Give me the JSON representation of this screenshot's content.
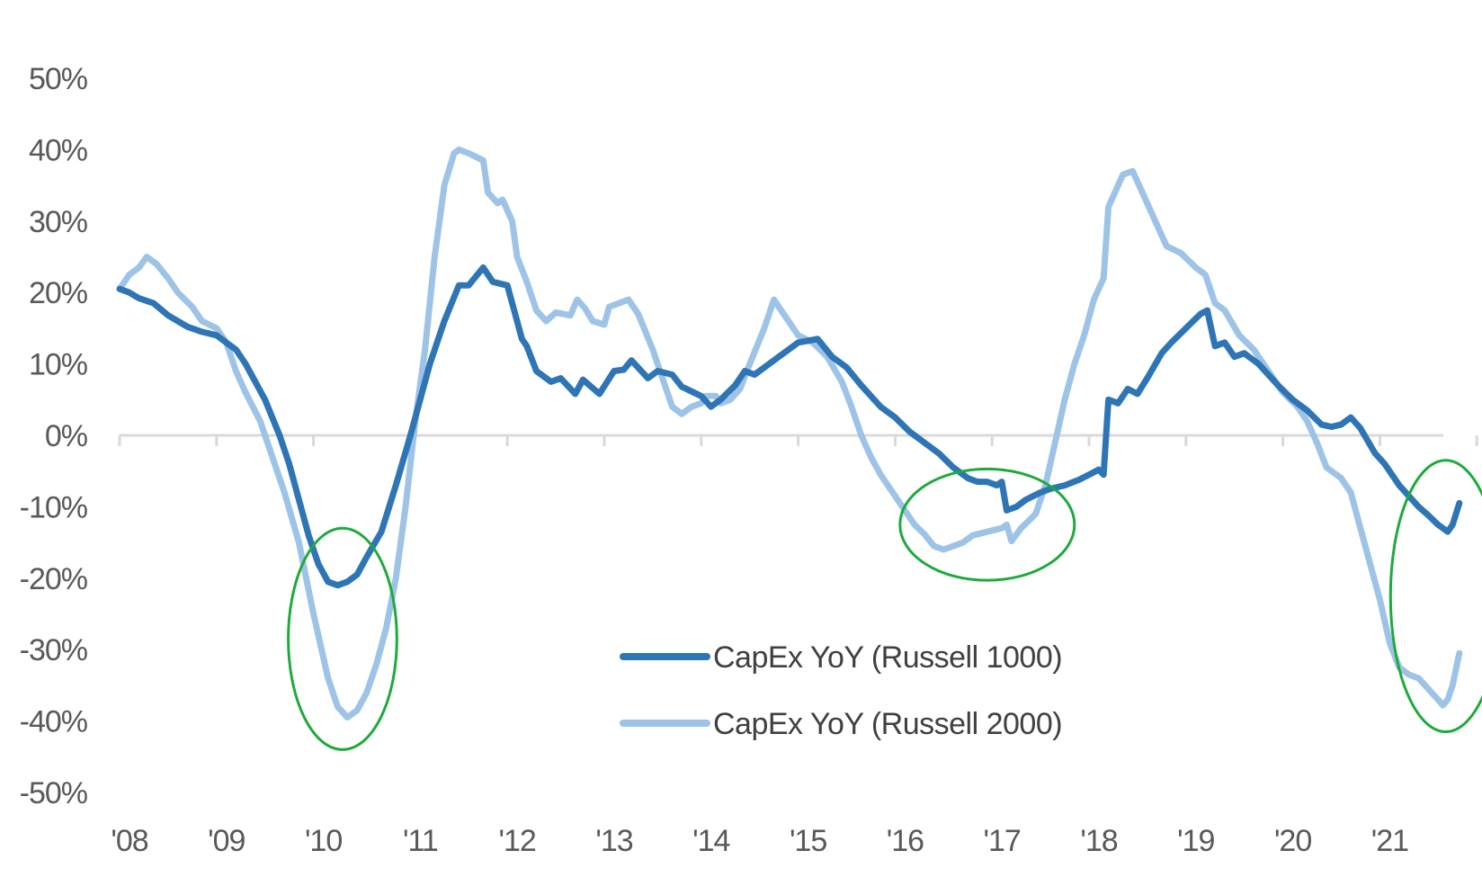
{
  "colors": {
    "series1": "#2E75B6",
    "series2": "#9DC3E6",
    "axis": "#D9D9D9",
    "highlight": "#1EAA3C"
  },
  "chart_data": {
    "type": "line",
    "title": "",
    "xlabel": "",
    "ylabel": "",
    "ylim": [
      -0.5,
      0.5
    ],
    "yticks": [
      0.5,
      0.4,
      0.3,
      0.2,
      0.1,
      0.0,
      -0.1,
      -0.2,
      -0.3,
      -0.4,
      -0.5
    ],
    "ytick_labels": [
      "50%",
      "40%",
      "30%",
      "20%",
      "10%",
      "0%",
      "-10%",
      "-20%",
      "-30%",
      "-40%",
      "-50%"
    ],
    "xlim": [
      2008.0,
      2021.65
    ],
    "xticks": [
      2008,
      2009,
      2010,
      2011,
      2012,
      2013,
      2014,
      2015,
      2016,
      2017,
      2018,
      2019,
      2020,
      2021
    ],
    "xtick_labels": [
      "'08",
      "'09",
      "'10",
      "'11",
      "'12",
      "'13",
      "'14",
      "'15",
      "'16",
      "'17",
      "'18",
      "'19",
      "'20",
      "'21"
    ],
    "legend": {
      "placement": "center-bottom"
    },
    "series": [
      {
        "name": "CapEx YoY (Russell 1000)",
        "points": [
          [
            2008.0,
            0.205
          ],
          [
            2008.1,
            0.2
          ],
          [
            2008.2,
            0.192
          ],
          [
            2008.35,
            0.185
          ],
          [
            2008.5,
            0.168
          ],
          [
            2008.7,
            0.152
          ],
          [
            2008.85,
            0.145
          ],
          [
            2009.0,
            0.14
          ],
          [
            2009.1,
            0.13
          ],
          [
            2009.2,
            0.12
          ],
          [
            2009.3,
            0.1
          ],
          [
            2009.5,
            0.05
          ],
          [
            2009.65,
            0.0
          ],
          [
            2009.75,
            -0.04
          ],
          [
            2009.85,
            -0.09
          ],
          [
            2009.95,
            -0.14
          ],
          [
            2010.05,
            -0.18
          ],
          [
            2010.15,
            -0.205
          ],
          [
            2010.25,
            -0.21
          ],
          [
            2010.35,
            -0.205
          ],
          [
            2010.45,
            -0.195
          ],
          [
            2010.55,
            -0.17
          ],
          [
            2010.7,
            -0.135
          ],
          [
            2010.85,
            -0.07
          ],
          [
            2011.0,
            0.0
          ],
          [
            2011.1,
            0.05
          ],
          [
            2011.2,
            0.1
          ],
          [
            2011.35,
            0.16
          ],
          [
            2011.5,
            0.21
          ],
          [
            2011.6,
            0.21
          ],
          [
            2011.75,
            0.235
          ],
          [
            2011.85,
            0.215
          ],
          [
            2012.0,
            0.21
          ],
          [
            2012.1,
            0.16
          ],
          [
            2012.15,
            0.135
          ],
          [
            2012.2,
            0.125
          ],
          [
            2012.3,
            0.09
          ],
          [
            2012.45,
            0.075
          ],
          [
            2012.55,
            0.08
          ],
          [
            2012.7,
            0.058
          ],
          [
            2012.78,
            0.078
          ],
          [
            2012.95,
            0.058
          ],
          [
            2013.1,
            0.09
          ],
          [
            2013.2,
            0.092
          ],
          [
            2013.28,
            0.105
          ],
          [
            2013.45,
            0.08
          ],
          [
            2013.55,
            0.09
          ],
          [
            2013.7,
            0.085
          ],
          [
            2013.8,
            0.068
          ],
          [
            2014.0,
            0.055
          ],
          [
            2014.1,
            0.04
          ],
          [
            2014.2,
            0.05
          ],
          [
            2014.35,
            0.07
          ],
          [
            2014.45,
            0.09
          ],
          [
            2014.55,
            0.085
          ],
          [
            2014.7,
            0.1
          ],
          [
            2014.85,
            0.115
          ],
          [
            2015.0,
            0.13
          ],
          [
            2015.2,
            0.135
          ],
          [
            2015.35,
            0.11
          ],
          [
            2015.5,
            0.095
          ],
          [
            2015.65,
            0.07
          ],
          [
            2015.85,
            0.04
          ],
          [
            2016.0,
            0.025
          ],
          [
            2016.15,
            0.005
          ],
          [
            2016.3,
            -0.01
          ],
          [
            2016.45,
            -0.025
          ],
          [
            2016.6,
            -0.045
          ],
          [
            2016.75,
            -0.06
          ],
          [
            2016.85,
            -0.065
          ],
          [
            2016.95,
            -0.065
          ],
          [
            2017.05,
            -0.07
          ],
          [
            2017.1,
            -0.065
          ],
          [
            2017.15,
            -0.105
          ],
          [
            2017.25,
            -0.1
          ],
          [
            2017.35,
            -0.09
          ],
          [
            2017.5,
            -0.08
          ],
          [
            2017.6,
            -0.075
          ],
          [
            2017.75,
            -0.07
          ],
          [
            2017.9,
            -0.062
          ],
          [
            2018.0,
            -0.055
          ],
          [
            2018.1,
            -0.048
          ],
          [
            2018.15,
            -0.055
          ],
          [
            2018.2,
            0.05
          ],
          [
            2018.3,
            0.045
          ],
          [
            2018.4,
            0.065
          ],
          [
            2018.5,
            0.058
          ],
          [
            2018.6,
            0.08
          ],
          [
            2018.75,
            0.115
          ],
          [
            2018.85,
            0.13
          ],
          [
            2019.0,
            0.15
          ],
          [
            2019.15,
            0.17
          ],
          [
            2019.22,
            0.175
          ],
          [
            2019.3,
            0.125
          ],
          [
            2019.4,
            0.13
          ],
          [
            2019.5,
            0.11
          ],
          [
            2019.6,
            0.115
          ],
          [
            2019.75,
            0.1
          ],
          [
            2019.95,
            0.07
          ],
          [
            2020.1,
            0.05
          ],
          [
            2020.25,
            0.035
          ],
          [
            2020.4,
            0.015
          ],
          [
            2020.5,
            0.012
          ],
          [
            2020.6,
            0.015
          ],
          [
            2020.7,
            0.025
          ],
          [
            2020.8,
            0.01
          ],
          [
            2020.95,
            -0.025
          ],
          [
            2021.05,
            -0.04
          ],
          [
            2021.2,
            -0.07
          ],
          [
            2021.3,
            -0.085
          ],
          [
            2021.4,
            -0.1
          ],
          [
            2021.5,
            -0.112
          ],
          [
            2021.6,
            -0.125
          ],
          [
            2021.65,
            -0.13
          ],
          [
            2021.7,
            -0.135
          ],
          [
            2021.75,
            -0.125
          ],
          [
            2021.82,
            -0.095
          ]
        ]
      },
      {
        "name": "CapEx YoY (Russell 2000)",
        "points": [
          [
            2008.0,
            0.205
          ],
          [
            2008.1,
            0.225
          ],
          [
            2008.2,
            0.235
          ],
          [
            2008.28,
            0.25
          ],
          [
            2008.38,
            0.24
          ],
          [
            2008.5,
            0.22
          ],
          [
            2008.6,
            0.2
          ],
          [
            2008.75,
            0.18
          ],
          [
            2008.85,
            0.16
          ],
          [
            2009.0,
            0.15
          ],
          [
            2009.1,
            0.13
          ],
          [
            2009.2,
            0.09
          ],
          [
            2009.3,
            0.06
          ],
          [
            2009.45,
            0.02
          ],
          [
            2009.55,
            -0.02
          ],
          [
            2009.7,
            -0.08
          ],
          [
            2009.85,
            -0.15
          ],
          [
            2010.0,
            -0.25
          ],
          [
            2010.15,
            -0.34
          ],
          [
            2010.25,
            -0.38
          ],
          [
            2010.35,
            -0.395
          ],
          [
            2010.45,
            -0.385
          ],
          [
            2010.55,
            -0.36
          ],
          [
            2010.65,
            -0.32
          ],
          [
            2010.75,
            -0.27
          ],
          [
            2010.85,
            -0.2
          ],
          [
            2010.95,
            -0.1
          ],
          [
            2011.05,
            0.02
          ],
          [
            2011.15,
            0.12
          ],
          [
            2011.25,
            0.25
          ],
          [
            2011.35,
            0.35
          ],
          [
            2011.45,
            0.395
          ],
          [
            2011.5,
            0.4
          ],
          [
            2011.6,
            0.395
          ],
          [
            2011.75,
            0.385
          ],
          [
            2011.8,
            0.34
          ],
          [
            2011.9,
            0.325
          ],
          [
            2011.95,
            0.33
          ],
          [
            2012.05,
            0.3
          ],
          [
            2012.1,
            0.25
          ],
          [
            2012.2,
            0.215
          ],
          [
            2012.3,
            0.175
          ],
          [
            2012.4,
            0.16
          ],
          [
            2012.5,
            0.172
          ],
          [
            2012.65,
            0.168
          ],
          [
            2012.72,
            0.19
          ],
          [
            2012.8,
            0.178
          ],
          [
            2012.88,
            0.16
          ],
          [
            2013.0,
            0.155
          ],
          [
            2013.05,
            0.18
          ],
          [
            2013.15,
            0.185
          ],
          [
            2013.25,
            0.19
          ],
          [
            2013.35,
            0.17
          ],
          [
            2013.5,
            0.12
          ],
          [
            2013.6,
            0.08
          ],
          [
            2013.7,
            0.04
          ],
          [
            2013.8,
            0.03
          ],
          [
            2013.9,
            0.04
          ],
          [
            2014.0,
            0.045
          ],
          [
            2014.05,
            0.055
          ],
          [
            2014.15,
            0.055
          ],
          [
            2014.2,
            0.045
          ],
          [
            2014.3,
            0.05
          ],
          [
            2014.4,
            0.065
          ],
          [
            2014.5,
            0.1
          ],
          [
            2014.65,
            0.15
          ],
          [
            2014.75,
            0.19
          ],
          [
            2014.85,
            0.17
          ],
          [
            2015.0,
            0.14
          ],
          [
            2015.15,
            0.13
          ],
          [
            2015.3,
            0.11
          ],
          [
            2015.45,
            0.075
          ],
          [
            2015.55,
            0.04
          ],
          [
            2015.65,
            0.0
          ],
          [
            2015.75,
            -0.03
          ],
          [
            2015.85,
            -0.055
          ],
          [
            2016.0,
            -0.085
          ],
          [
            2016.2,
            -0.125
          ],
          [
            2016.3,
            -0.138
          ],
          [
            2016.4,
            -0.155
          ],
          [
            2016.5,
            -0.16
          ],
          [
            2016.6,
            -0.155
          ],
          [
            2016.7,
            -0.15
          ],
          [
            2016.8,
            -0.14
          ],
          [
            2016.95,
            -0.135
          ],
          [
            2017.1,
            -0.13
          ],
          [
            2017.15,
            -0.125
          ],
          [
            2017.2,
            -0.148
          ],
          [
            2017.3,
            -0.13
          ],
          [
            2017.45,
            -0.11
          ],
          [
            2017.55,
            -0.07
          ],
          [
            2017.65,
            -0.01
          ],
          [
            2017.75,
            0.05
          ],
          [
            2017.85,
            0.1
          ],
          [
            2017.95,
            0.14
          ],
          [
            2018.05,
            0.19
          ],
          [
            2018.15,
            0.22
          ],
          [
            2018.2,
            0.32
          ],
          [
            2018.25,
            0.335
          ],
          [
            2018.35,
            0.365
          ],
          [
            2018.45,
            0.37
          ],
          [
            2018.55,
            0.34
          ],
          [
            2018.65,
            0.31
          ],
          [
            2018.8,
            0.265
          ],
          [
            2018.95,
            0.255
          ],
          [
            2019.1,
            0.235
          ],
          [
            2019.2,
            0.225
          ],
          [
            2019.3,
            0.185
          ],
          [
            2019.4,
            0.175
          ],
          [
            2019.55,
            0.14
          ],
          [
            2019.7,
            0.12
          ],
          [
            2019.85,
            0.09
          ],
          [
            2020.0,
            0.06
          ],
          [
            2020.15,
            0.04
          ],
          [
            2020.25,
            0.02
          ],
          [
            2020.35,
            -0.01
          ],
          [
            2020.45,
            -0.045
          ],
          [
            2020.6,
            -0.06
          ],
          [
            2020.7,
            -0.08
          ],
          [
            2020.8,
            -0.13
          ],
          [
            2020.9,
            -0.18
          ],
          [
            2021.0,
            -0.23
          ],
          [
            2021.1,
            -0.29
          ],
          [
            2021.2,
            -0.325
          ],
          [
            2021.3,
            -0.335
          ],
          [
            2021.4,
            -0.34
          ],
          [
            2021.5,
            -0.355
          ],
          [
            2021.6,
            -0.37
          ],
          [
            2021.65,
            -0.378
          ],
          [
            2021.7,
            -0.37
          ],
          [
            2021.75,
            -0.35
          ],
          [
            2021.82,
            -0.305
          ]
        ]
      }
    ],
    "annotations": [
      {
        "type": "ellipse",
        "cx": 2010.3,
        "cy": -0.285,
        "rx": 0.56,
        "ry": 0.155
      },
      {
        "type": "ellipse",
        "cx": 2016.95,
        "cy": -0.125,
        "rx": 0.9,
        "ry": 0.078
      },
      {
        "type": "ellipse",
        "cx": 2021.68,
        "cy": -0.225,
        "rx": 0.57,
        "ry": 0.19
      }
    ]
  }
}
